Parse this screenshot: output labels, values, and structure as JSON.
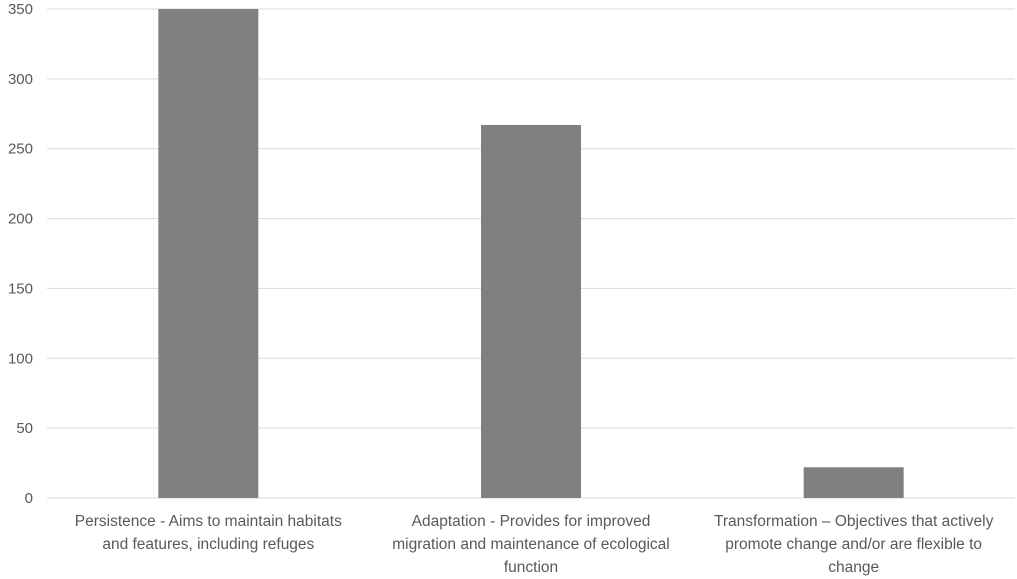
{
  "chart_data": {
    "type": "bar",
    "title": "",
    "xlabel": "",
    "ylabel": "",
    "categories": [
      "Persistence - Aims to maintain habitats and features, including refuges",
      "Adaptation - Provides for improved migration and maintenance of ecological function",
      "Transformation – Objectives that actively promote change and/or are flexible to change"
    ],
    "category_lines": [
      [
        "Persistence - Aims to maintain habitats",
        "and features, including refuges"
      ],
      [
        "Adaptation - Provides for improved",
        "migration and maintenance of ecological",
        "function"
      ],
      [
        "Transformation – Objectives that actively",
        "promote change and/or are flexible to",
        "change"
      ]
    ],
    "values": [
      350,
      267,
      22
    ],
    "ylim": [
      0,
      350
    ],
    "yticks": [
      "0",
      "50",
      "100",
      "150",
      "200",
      "250",
      "300",
      "350"
    ],
    "grid": true,
    "legend": "none",
    "colors": {
      "bar": "#808080",
      "grid": "#d9d9d9",
      "text": "#595959"
    }
  }
}
